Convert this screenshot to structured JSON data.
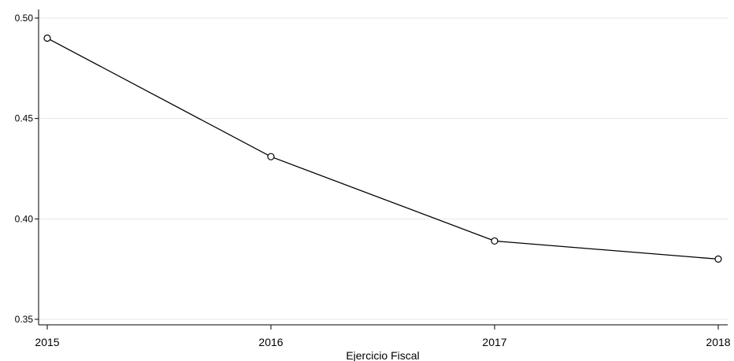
{
  "chart_data": {
    "type": "line",
    "title": "",
    "xlabel": "Ejercicio Fiscal",
    "ylabel": "",
    "x": [
      2015,
      2016,
      2017,
      2018
    ],
    "x_tick_labels": [
      "2015",
      "2016",
      "2017",
      "2018"
    ],
    "y_ticks": [
      0.35,
      0.4,
      0.45,
      0.5
    ],
    "y_tick_labels": [
      "0.35",
      "0.40",
      "0.45",
      "0.50"
    ],
    "ylim": [
      0.35,
      0.5
    ],
    "grid": true,
    "series": [
      {
        "values": [
          0.49,
          0.431,
          0.389,
          0.38
        ],
        "color": "#000000",
        "marker": "hollow-circle"
      }
    ]
  }
}
